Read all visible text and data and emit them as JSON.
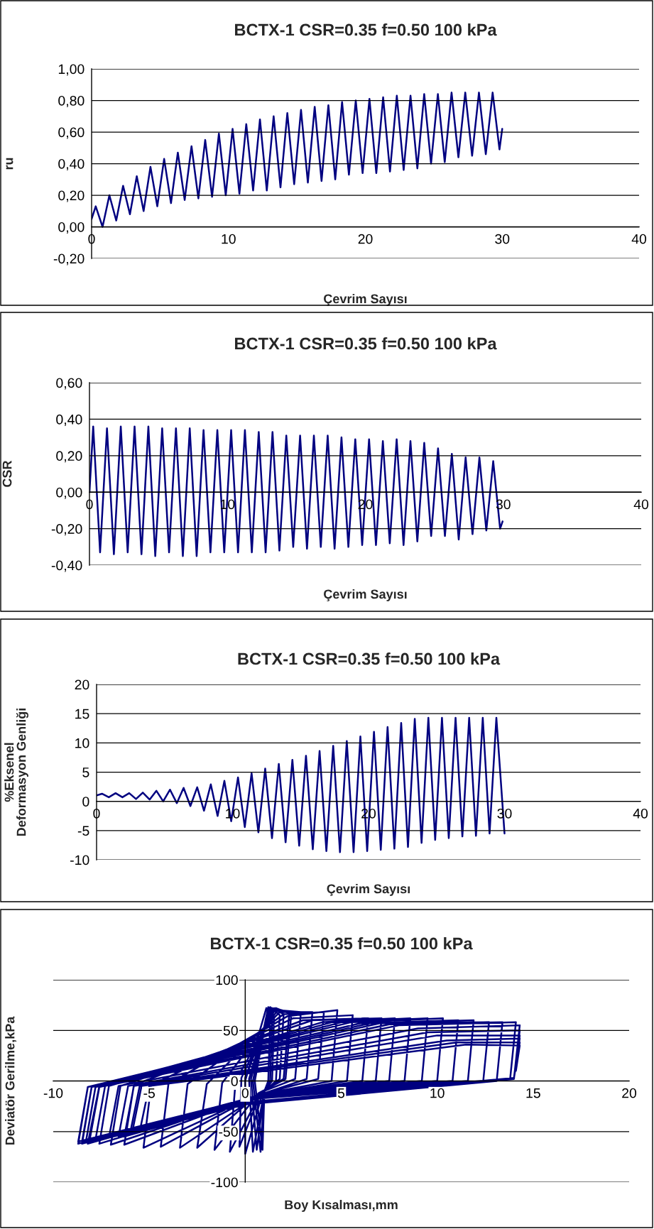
{
  "chart_data": [
    {
      "type": "line",
      "title": "BCTX-1 CSR=0.35 f=0.50 100 kPa",
      "xlabel": "Çevrim Sayısı",
      "ylabel": "ru",
      "color": "#000080",
      "grid": "y",
      "x": [
        0,
        0.3,
        0.8,
        1.3,
        1.8,
        2.3,
        2.8,
        3.3,
        3.8,
        4.3,
        4.8,
        5.3,
        5.8,
        6.3,
        6.8,
        7.3,
        7.8,
        8.3,
        8.8,
        9.3,
        9.8,
        10.3,
        10.8,
        11.3,
        11.8,
        12.3,
        12.8,
        13.3,
        13.8,
        14.3,
        14.8,
        15.3,
        15.8,
        16.3,
        16.8,
        17.3,
        17.8,
        18.3,
        18.8,
        19.3,
        19.8,
        20.3,
        20.8,
        21.3,
        21.8,
        22.3,
        22.8,
        23.3,
        23.8,
        24.3,
        24.8,
        25.3,
        25.8,
        26.3,
        26.8,
        27.3,
        27.8,
        28.3,
        28.8,
        29.3,
        29.8,
        30.0
      ],
      "values": [
        0.05,
        0.13,
        0.0,
        0.2,
        0.04,
        0.26,
        0.08,
        0.32,
        0.1,
        0.38,
        0.13,
        0.43,
        0.15,
        0.47,
        0.17,
        0.51,
        0.18,
        0.55,
        0.19,
        0.59,
        0.2,
        0.62,
        0.21,
        0.65,
        0.23,
        0.68,
        0.23,
        0.7,
        0.25,
        0.72,
        0.27,
        0.74,
        0.28,
        0.76,
        0.29,
        0.77,
        0.3,
        0.79,
        0.33,
        0.8,
        0.34,
        0.81,
        0.34,
        0.82,
        0.35,
        0.83,
        0.36,
        0.83,
        0.37,
        0.84,
        0.4,
        0.84,
        0.41,
        0.85,
        0.44,
        0.85,
        0.45,
        0.85,
        0.46,
        0.85,
        0.49,
        0.62
      ],
      "xlim": [
        0,
        40
      ],
      "xticks": [
        0,
        10,
        20,
        30,
        40
      ],
      "ylim": [
        -0.2,
        1.0
      ],
      "yticks": [
        {
          "value": -0.2,
          "label": "-0,20"
        },
        {
          "value": 0.0,
          "label": "0,00"
        },
        {
          "value": 0.2,
          "label": "0,20"
        },
        {
          "value": 0.4,
          "label": "0,40"
        },
        {
          "value": 0.6,
          "label": "0,60"
        },
        {
          "value": 0.8,
          "label": "0,80"
        },
        {
          "value": 1.0,
          "label": "1,00"
        }
      ]
    },
    {
      "type": "line",
      "title": "BCTX-1 CSR=0.35 f=0.50 100 kPa",
      "xlabel": "Çevrim Sayısı",
      "ylabel": "CSR",
      "color": "#000080",
      "grid": "y",
      "x": [
        0,
        0.27,
        0.77,
        1.27,
        1.77,
        2.27,
        2.77,
        3.27,
        3.77,
        4.27,
        4.77,
        5.27,
        5.77,
        6.27,
        6.77,
        7.27,
        7.77,
        8.27,
        8.77,
        9.27,
        9.77,
        10.27,
        10.77,
        11.27,
        11.77,
        12.27,
        12.77,
        13.27,
        13.77,
        14.27,
        14.77,
        15.27,
        15.77,
        16.27,
        16.77,
        17.27,
        17.77,
        18.27,
        18.77,
        19.27,
        19.77,
        20.27,
        20.77,
        21.27,
        21.77,
        22.27,
        22.77,
        23.27,
        23.77,
        24.27,
        24.77,
        25.27,
        25.77,
        26.27,
        26.77,
        27.27,
        27.77,
        28.27,
        28.77,
        29.27,
        29.77,
        29.95
      ],
      "values": [
        0,
        0.36,
        -0.33,
        0.35,
        -0.34,
        0.36,
        -0.33,
        0.36,
        -0.34,
        0.36,
        -0.35,
        0.35,
        -0.33,
        0.35,
        -0.35,
        0.35,
        -0.35,
        0.34,
        -0.33,
        0.34,
        -0.33,
        0.34,
        -0.33,
        0.34,
        -0.33,
        0.33,
        -0.33,
        0.33,
        -0.32,
        0.31,
        -0.3,
        0.31,
        -0.31,
        0.31,
        -0.3,
        0.31,
        -0.31,
        0.3,
        -0.3,
        0.29,
        -0.29,
        0.29,
        -0.29,
        0.28,
        -0.28,
        0.29,
        -0.29,
        0.28,
        -0.27,
        0.27,
        -0.24,
        0.24,
        -0.24,
        0.21,
        -0.26,
        0.19,
        -0.23,
        0.19,
        -0.21,
        0.17,
        -0.2,
        -0.16
      ],
      "xlim": [
        0,
        40
      ],
      "xticks": [
        0,
        10,
        20,
        30,
        40
      ],
      "ylim": [
        -0.4,
        0.6
      ],
      "yticks": [
        {
          "value": -0.4,
          "label": "-0,40"
        },
        {
          "value": -0.2,
          "label": "-0,20"
        },
        {
          "value": 0.0,
          "label": "0,00"
        },
        {
          "value": 0.2,
          "label": "0,20"
        },
        {
          "value": 0.4,
          "label": "0,40"
        },
        {
          "value": 0.6,
          "label": "0,60"
        }
      ]
    },
    {
      "type": "line",
      "title": "BCTX-1 CSR=0.35 f=0.50 100 kPa",
      "xlabel": "Çevrim Sayısı",
      "ylabel": "%Eksenel\nDeformasyon Genliği",
      "color": "#000080",
      "grid": "y",
      "x": [
        0,
        0.4,
        0.9,
        1.4,
        1.9,
        2.4,
        2.9,
        3.4,
        3.9,
        4.4,
        4.9,
        5.4,
        5.9,
        6.4,
        6.9,
        7.4,
        7.9,
        8.4,
        8.9,
        9.4,
        9.9,
        10.4,
        10.9,
        11.4,
        11.9,
        12.4,
        12.9,
        13.4,
        13.9,
        14.4,
        14.9,
        15.4,
        15.9,
        16.4,
        16.9,
        17.4,
        17.9,
        18.4,
        18.9,
        19.4,
        19.9,
        20.4,
        20.9,
        21.4,
        21.9,
        22.4,
        22.9,
        23.4,
        23.9,
        24.4,
        24.9,
        25.4,
        25.9,
        26.4,
        26.9,
        27.4,
        27.9,
        28.4,
        28.9,
        29.4,
        30.0
      ],
      "values": [
        1.0,
        1.3,
        0.7,
        1.4,
        0.7,
        1.4,
        0.4,
        1.5,
        0.3,
        1.8,
        0.0,
        2.0,
        -0.3,
        2.3,
        -0.8,
        2.4,
        -1.6,
        2.9,
        -2.5,
        3.5,
        -3.4,
        4.1,
        -4.4,
        4.8,
        -5.3,
        5.6,
        -6.3,
        6.4,
        -7.0,
        7.1,
        -7.6,
        7.8,
        -8.2,
        8.6,
        -8.5,
        9.5,
        -8.7,
        10.3,
        -8.7,
        11.1,
        -8.5,
        11.9,
        -8.3,
        12.7,
        -8.1,
        13.4,
        -7.8,
        14.1,
        -7.1,
        14.3,
        -6.6,
        14.3,
        -6.3,
        14.3,
        -6.0,
        14.3,
        -5.9,
        14.3,
        -5.5,
        14.3,
        -5.5
      ],
      "xlim": [
        0,
        40
      ],
      "xticks": [
        0,
        10,
        20,
        30,
        40
      ],
      "ylim": [
        -10,
        20
      ],
      "yticks": [
        -10,
        -5,
        0,
        5,
        10,
        15,
        20
      ]
    },
    {
      "type": "line",
      "title": "BCTX-1 CSR=0.35 f=0.50 100 kPa",
      "xlabel": "Boy Kısalması,mm",
      "ylabel": "Deviatör Gerilme,kPa",
      "color": "#000080",
      "grid": "y",
      "x": [
        0,
        1.1,
        1.3,
        1.2,
        1.0,
        0.9,
        0.5,
        1.2,
        1.4,
        1.3,
        1.0,
        0.8,
        0.4,
        1.2,
        1.4,
        1.3,
        1.0,
        0.6,
        0.3,
        1.3,
        1.5,
        1.4,
        1.0,
        0.4,
        0.2,
        1.3,
        1.8,
        1.6,
        0.9,
        0.0,
        0.0,
        1.4,
        2.0,
        1.8,
        0.8,
        -0.3,
        -0.2,
        1.5,
        2.3,
        2.0,
        0.8,
        -0.8,
        -0.5,
        1.6,
        2.4,
        2.1,
        0.7,
        -1.6,
        -1.2,
        1.7,
        2.9,
        2.6,
        0.7,
        -2.5,
        -2.0,
        1.8,
        3.5,
        3.2,
        0.7,
        -3.4,
        -3.0,
        2.0,
        4.1,
        3.8,
        0.6,
        -4.4,
        -4.0,
        2.2,
        4.8,
        4.5,
        0.6,
        -5.3,
        -4.9,
        2.5,
        5.6,
        5.3,
        0.5,
        -6.3,
        -5.8,
        3.0,
        6.4,
        6.1,
        0.5,
        -7.0,
        -6.5,
        3.5,
        7.1,
        6.8,
        0.5,
        -7.6,
        -7.1,
        4.0,
        7.8,
        7.5,
        0.4,
        -8.2,
        -7.6,
        4.5,
        8.6,
        8.3,
        0.4,
        -8.5,
        -8.0,
        5.0,
        9.5,
        9.2,
        0.4,
        -8.7,
        -8.2,
        5.5,
        10.3,
        10.0,
        0.3,
        -8.7,
        -8.2,
        6.0,
        11.1,
        10.8,
        0.3,
        -8.5,
        -8.0,
        6.5,
        11.9,
        11.6,
        0.2,
        -8.3,
        -7.8,
        7.0,
        12.7,
        12.4,
        0.2,
        -8.1,
        -7.6,
        7.5,
        13.4,
        13.1,
        0.1,
        -7.8,
        -7.3,
        8.0,
        14.1,
        13.8,
        0.0,
        -7.1,
        -6.6,
        9.0,
        14.3,
        14.0,
        0.0,
        -6.6,
        -6.1,
        9.5,
        14.3,
        14.0,
        -0.2,
        -6.3,
        -5.8,
        10.0,
        14.3,
        14.0,
        -0.3,
        -6.0,
        -5.5,
        10.5,
        14.3,
        14.0,
        -0.4,
        -5.9,
        -5.4,
        11.0,
        14.3,
        14.0,
        -0.5,
        -5.5,
        -5.0,
        11.5,
        14.3,
        14.1
      ],
      "values": [
        0,
        72,
        60,
        0,
        -10,
        -68,
        0,
        72,
        62,
        0,
        -10,
        -70,
        0,
        73,
        62,
        0,
        -10,
        -68,
        2,
        73,
        62,
        0,
        -10,
        -70,
        2,
        73,
        65,
        0,
        -12,
        -72,
        3,
        72,
        66,
        2,
        -12,
        -65,
        3,
        72,
        68,
        2,
        -12,
        -70,
        0,
        72,
        66,
        2,
        -12,
        -68,
        -2,
        70,
        68,
        2,
        -12,
        -66,
        -3,
        68,
        68,
        2,
        -14,
        -66,
        -3,
        66,
        68,
        2,
        -14,
        -65,
        -3,
        64,
        70,
        0,
        -14,
        -66,
        -4,
        62,
        65,
        0,
        -15,
        -63,
        -4,
        60,
        62,
        0,
        -15,
        -63,
        -5,
        60,
        62,
        0,
        -15,
        -62,
        -5,
        58,
        62,
        0,
        -16,
        -62,
        -5,
        58,
        62,
        0,
        -16,
        -62,
        -6,
        58,
        62,
        0,
        -16,
        -62,
        -6,
        58,
        62,
        0,
        -17,
        -60,
        -6,
        57,
        60,
        0,
        -17,
        -60,
        -6,
        57,
        60,
        0,
        -18,
        -60,
        -6,
        57,
        58,
        0,
        -18,
        -58,
        -6,
        56,
        58,
        0,
        -23,
        -58,
        -5,
        55,
        58,
        2,
        -23,
        -56,
        -5,
        52,
        55,
        2,
        -23,
        -55,
        -5,
        48,
        50,
        3,
        -22,
        -55,
        -5,
        45,
        45,
        3,
        -22,
        -52,
        -5,
        40,
        42,
        3,
        -22,
        -52,
        -5,
        38,
        38,
        3,
        -22,
        -50,
        -5,
        36,
        35,
        10
      ],
      "xlim": [
        -10,
        20
      ],
      "xticks": [
        -10,
        -5,
        0,
        5,
        10,
        15,
        20
      ],
      "ylim": [
        -100,
        100
      ],
      "yticks": [
        -100,
        -50,
        0,
        50,
        100
      ]
    }
  ]
}
